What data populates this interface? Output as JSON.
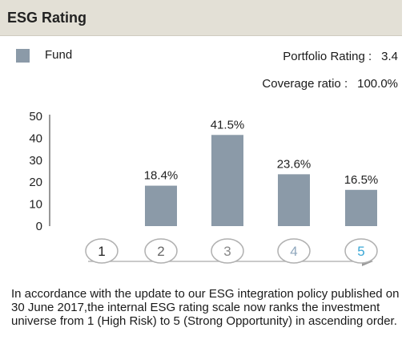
{
  "header": {
    "title": "ESG Rating"
  },
  "legend": {
    "fund_label": "Fund",
    "fund_color": "#8b9aa8"
  },
  "metrics": {
    "portfolio_rating_label": "Portfolio Rating :",
    "portfolio_rating_value": "3.4",
    "coverage_ratio_label": "Coverage ratio :",
    "coverage_ratio_value": "100.0%"
  },
  "chart_data": {
    "type": "bar",
    "categories": [
      "1",
      "2",
      "3",
      "4",
      "5"
    ],
    "values": [
      0,
      18.4,
      41.5,
      23.6,
      16.5
    ],
    "data_labels": [
      "",
      "18.4%",
      "41.5%",
      "23.6%",
      "16.5%"
    ],
    "ylim": [
      0,
      50
    ],
    "yticks": [
      "0",
      "10",
      "20",
      "30",
      "40",
      "50"
    ],
    "bar_color": "#8b9aa8",
    "category_label_colors": [
      "#222222",
      "#666666",
      "#888888",
      "#8fa7bd",
      "#3aa7d6"
    ],
    "legend_position": "top-left",
    "grid": false
  },
  "footnote": "In accordance with the update to our ESG integration policy published on 30 June 2017,the internal ESG rating scale now ranks the investment universe from 1 (High Risk) to 5 (Strong Opportunity) in ascending order."
}
